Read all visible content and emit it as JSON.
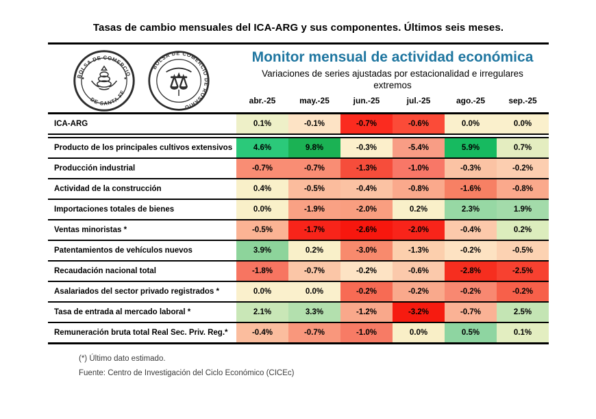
{
  "page_title": "Tasas de cambio mensuales del ICA-ARG y sus componentes. Últimos seis meses.",
  "header": {
    "title": "Monitor mensual de actividad económica",
    "title_color": "#1F76A0",
    "subtitle": "Variaciones de series ajustadas por estacionalidad e irregulares extremos",
    "logos": [
      {
        "name": "bolsa-de-comercio-de-santa-fe",
        "text_top": "BOLSA DE COMERCIO",
        "text_bottom": "DE SANTA FE"
      },
      {
        "name": "bolsa-de-comercio-de-rosario",
        "text_around": "BOLSA DE COMERCIO DE ROSARIO",
        "center_icon": "scales-icon"
      }
    ]
  },
  "months": [
    "abr.-25",
    "may.-25",
    "jun.-25",
    "jul.-25",
    "ago.-25",
    "sep.-25"
  ],
  "rows": [
    {
      "label": "ICA-ARG",
      "values": [
        "0.1%",
        "-0.1%",
        "-0.7%",
        "-0.6%",
        "0.0%",
        "0.0%"
      ],
      "colors": [
        "#eef0c8",
        "#fde3c5",
        "#fb2b1f",
        "#fb4b38",
        "#faf0cc",
        "#faf0cc"
      ]
    },
    {
      "label": "Producto de los principales cultivos extensivos",
      "values": [
        "4.6%",
        "9.8%",
        "-0.3%",
        "-5.4%",
        "5.9%",
        "0.7%"
      ],
      "colors": [
        "#2bc97a",
        "#1bb254",
        "#fcefcb",
        "#f89d85",
        "#17ba60",
        "#e4edc0"
      ]
    },
    {
      "label": "Producción industrial",
      "values": [
        "-0.7%",
        "-0.7%",
        "-1.3%",
        "-1.0%",
        "-0.3%",
        "-0.2%"
      ],
      "colors": [
        "#f98d74",
        "#f98d74",
        "#f64d3b",
        "#f87767",
        "#fbc3a4",
        "#fcceb0"
      ]
    },
    {
      "label": "Actividad de la construcción",
      "values": [
        "0.4%",
        "-0.5%",
        "-0.4%",
        "-0.8%",
        "-1.6%",
        "-0.8%"
      ],
      "colors": [
        "#f9f0c9",
        "#fbbc9d",
        "#fbc2a3",
        "#faa98c",
        "#f78064",
        "#faa98c"
      ]
    },
    {
      "label": "Importaciones totales de bienes",
      "values": [
        "0.0%",
        "-1.9%",
        "-2.0%",
        "0.2%",
        "2.3%",
        "1.9%"
      ],
      "colors": [
        "#f9f0c9",
        "#f9a184",
        "#f99e80",
        "#f9f0c9",
        "#97d8a4",
        "#a3dbaa"
      ]
    },
    {
      "label": "Ventas minoristas *",
      "values": [
        "-0.5%",
        "-1.7%",
        "-2.6%",
        "-2.0%",
        "-0.4%",
        "0.2%"
      ],
      "colors": [
        "#fbb394",
        "#f8241a",
        "#f7170e",
        "#f8241a",
        "#fcc9ab",
        "#dcedbd"
      ]
    },
    {
      "label": "Patentamientos de vehículos nuevos",
      "values": [
        "3.9%",
        "0.2%",
        "-3.0%",
        "-1.3%",
        "-0.2%",
        "-0.5%"
      ],
      "colors": [
        "#8dd49b",
        "#f9f0c9",
        "#f88a6d",
        "#fccfad",
        "#fde2c2",
        "#fcd2b2"
      ]
    },
    {
      "label": "Recaudación nacional total",
      "values": [
        "-1.8%",
        "-0.7%",
        "-0.2%",
        "-0.6%",
        "-2.8%",
        "-2.5%"
      ],
      "colors": [
        "#f77561",
        "#fbc6a7",
        "#fde3c4",
        "#fbc9ab",
        "#f62e1f",
        "#f74130"
      ]
    },
    {
      "label": "Asalariados del sector privado registrados *",
      "values": [
        "0.0%",
        "0.0%",
        "-0.2%",
        "-0.2%",
        "-0.2%",
        "-0.2%"
      ],
      "colors": [
        "#faf0cc",
        "#faf0cc",
        "#f76b54",
        "#f9a98c",
        "#f88871",
        "#f7604a"
      ]
    },
    {
      "label": "Tasa de entrada al mercado laboral *",
      "values": [
        "2.1%",
        "3.3%",
        "-1.2%",
        "-3.2%",
        "-0.7%",
        "2.5%"
      ],
      "colors": [
        "#c9e7b7",
        "#b3e0ae",
        "#f9a88b",
        "#f61b10",
        "#fab295",
        "#c4e5b4"
      ]
    },
    {
      "label": "Remuneración bruta total Real Sec. Priv. Reg.*",
      "values": [
        "-0.4%",
        "-0.7%",
        "-1.0%",
        "0.0%",
        "0.5%",
        "0.1%"
      ],
      "colors": [
        "#fbbd9e",
        "#f9977c",
        "#f77b65",
        "#f9efc7",
        "#8ed5a1",
        "#e3eec1"
      ]
    }
  ],
  "footnotes": [
    "(*) Último dato estimado.",
    "Fuente: Centro de Investigación del Ciclo Económico (CICEc)"
  ],
  "chart_data": {
    "type": "heatmap",
    "title": "Tasas de cambio mensuales del ICA-ARG y sus componentes. Últimos seis meses.",
    "subtitle": "Monitor mensual de actividad económica — Variaciones de series ajustadas por estacionalidad e irregulares extremos",
    "unit": "%",
    "categories": [
      "abr.-25",
      "may.-25",
      "jun.-25",
      "jul.-25",
      "ago.-25",
      "sep.-25"
    ],
    "series": [
      {
        "name": "ICA-ARG",
        "values": [
          0.1,
          -0.1,
          -0.7,
          -0.6,
          0.0,
          0.0
        ]
      },
      {
        "name": "Producto de los principales cultivos extensivos",
        "values": [
          4.6,
          9.8,
          -0.3,
          -5.4,
          5.9,
          0.7
        ]
      },
      {
        "name": "Producción industrial",
        "values": [
          -0.7,
          -0.7,
          -1.3,
          -1.0,
          -0.3,
          -0.2
        ]
      },
      {
        "name": "Actividad de la construcción",
        "values": [
          0.4,
          -0.5,
          -0.4,
          -0.8,
          -1.6,
          -0.8
        ]
      },
      {
        "name": "Importaciones totales de bienes",
        "values": [
          0.0,
          -1.9,
          -2.0,
          0.2,
          2.3,
          1.9
        ]
      },
      {
        "name": "Ventas minoristas *",
        "values": [
          -0.5,
          -1.7,
          -2.6,
          -2.0,
          -0.4,
          0.2
        ]
      },
      {
        "name": "Patentamientos de vehículos nuevos",
        "values": [
          3.9,
          0.2,
          -3.0,
          -1.3,
          -0.2,
          -0.5
        ]
      },
      {
        "name": "Recaudación nacional total",
        "values": [
          -1.8,
          -0.7,
          -0.2,
          -0.6,
          -2.8,
          -2.5
        ]
      },
      {
        "name": "Asalariados del sector privado registrados *",
        "values": [
          0.0,
          0.0,
          -0.2,
          -0.2,
          -0.2,
          -0.2
        ]
      },
      {
        "name": "Tasa de entrada al mercado laboral *",
        "values": [
          2.1,
          3.3,
          -1.2,
          -3.2,
          -0.7,
          2.5
        ]
      },
      {
        "name": "Remuneración bruta total Real Sec. Priv. Reg.*",
        "values": [
          -0.4,
          -0.7,
          -1.0,
          0.0,
          0.5,
          0.1
        ]
      }
    ],
    "color_scale": {
      "negative": "#f7170e",
      "neutral": "#faf0cc",
      "positive": "#17ba60"
    },
    "legend": "off",
    "grid": "row-separators"
  }
}
